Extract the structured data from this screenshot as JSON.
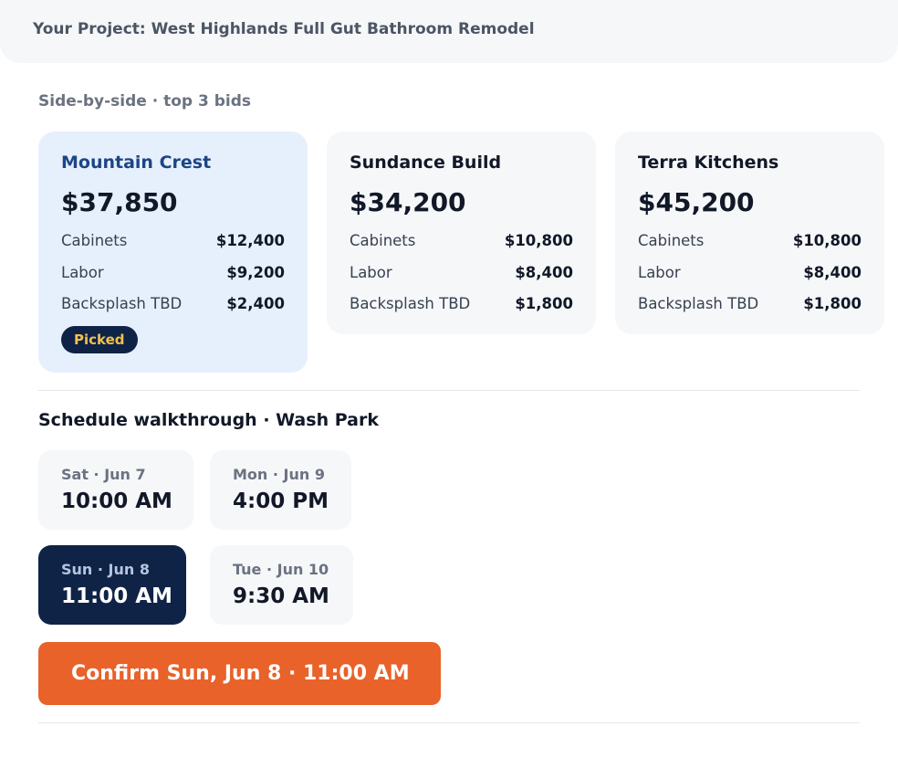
{
  "project": {
    "title": "Your Project: West Highlands Full Gut Bathroom Remodel"
  },
  "bids": {
    "section_label": "Side-by-side · top 3 bids",
    "items": [
      {
        "name": "Mountain Crest",
        "total": "$37,850",
        "lines": [
          {
            "label": "Cabinets",
            "value": "$12,400"
          },
          {
            "label": "Labor",
            "value": "$9,200"
          },
          {
            "label": "Backsplash TBD",
            "value": "$2,400"
          }
        ],
        "badge": "Picked"
      },
      {
        "name": "Sundance Build",
        "total": "$34,200",
        "lines": [
          {
            "label": "Cabinets",
            "value": "$10,800"
          },
          {
            "label": "Labor",
            "value": "$8,400"
          },
          {
            "label": "Backsplash TBD",
            "value": "$1,800"
          }
        ]
      },
      {
        "name": "Terra Kitchens",
        "total": "$45,200",
        "lines": [
          {
            "label": "Cabinets",
            "value": "$10,800"
          },
          {
            "label": "Labor",
            "value": "$8,400"
          },
          {
            "label": "Backsplash TBD",
            "value": "$1,800"
          }
        ]
      }
    ]
  },
  "schedule": {
    "title": "Schedule walkthrough · Wash Park",
    "slots": [
      {
        "day": "Sat · Jun 7",
        "time": "10:00 AM"
      },
      {
        "day": "Mon · Jun 9",
        "time": "4:00 PM"
      },
      {
        "day": "Sun · Jun 8",
        "time": "11:00 AM"
      },
      {
        "day": "Tue · Jun 10",
        "time": "9:30 AM"
      }
    ],
    "selected_index": 2,
    "confirm_label": "Confirm Sun, Jun 8 · 11:00 AM"
  },
  "colors": {
    "accent": "#e8622a",
    "navy": "#0f2347",
    "picked_bg": "#e6f0fd",
    "badge_text": "#f2c14e"
  }
}
